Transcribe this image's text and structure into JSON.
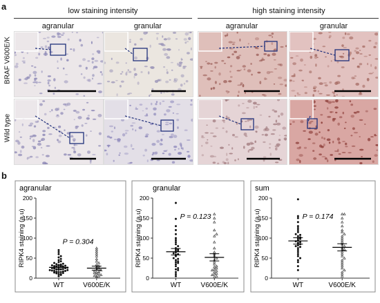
{
  "panel_a": {
    "letter": "a",
    "groups": [
      {
        "title": "low staining intensity"
      },
      {
        "title": "high staining intensity"
      }
    ],
    "columns": [
      "agranular",
      "granular",
      "agranular",
      "granular"
    ],
    "rows": [
      "BRAF V600E/K",
      "Wild type"
    ],
    "tile_tones": [
      [
        "#ece7e9",
        "#ebe6e0",
        "#dfbfba",
        "#e2c2c0"
      ],
      [
        "#ece7ea",
        "#e3dfe7",
        "#e5d4d6",
        "#d9a7a3"
      ]
    ],
    "tile_dots": [
      [
        "#8a86b5",
        "#9b95b8",
        "#9a5b55",
        "#a56a62"
      ],
      [
        "#8e89b6",
        "#8d88bb",
        "#a27c80",
        "#8e3f3a"
      ]
    ]
  },
  "panel_b": {
    "letter": "b",
    "ylabel": "RIPK4 staining (a.u)",
    "colors": {
      "wt": "#111111",
      "mut": "#555555",
      "axis": "#333333"
    }
  },
  "chart_data": [
    {
      "type": "scatter",
      "title": "agranular",
      "categories": [
        "WT",
        "V600E/K"
      ],
      "ylabel": "RIPK4 staining (a.u)",
      "ylim": [
        0,
        200
      ],
      "yticks": [
        0,
        50,
        100,
        150,
        200
      ],
      "annotation": "P = 0.304",
      "series": [
        {
          "name": "WT",
          "mean": 27,
          "sem": 4,
          "values": [
            5,
            8,
            10,
            10,
            12,
            13,
            14,
            15,
            15,
            16,
            17,
            18,
            18,
            19,
            20,
            20,
            21,
            22,
            22,
            23,
            24,
            25,
            25,
            26,
            27,
            28,
            28,
            29,
            30,
            31,
            32,
            33,
            34,
            35,
            36,
            38,
            40,
            42,
            45,
            48,
            52,
            55,
            60,
            65,
            70
          ]
        },
        {
          "name": "V600E/K",
          "mean": 25,
          "sem": 5,
          "values": [
            2,
            4,
            5,
            6,
            8,
            10,
            12,
            13,
            15,
            16,
            18,
            20,
            22,
            25,
            28,
            30,
            34,
            38,
            42,
            48,
            55,
            60,
            65,
            70,
            75
          ]
        }
      ]
    },
    {
      "type": "scatter",
      "title": "granular",
      "categories": [
        "WT",
        "V600E/K"
      ],
      "ylabel": "RIPK4 staining (a.u)",
      "ylim": [
        0,
        200
      ],
      "yticks": [
        0,
        50,
        100,
        150,
        200
      ],
      "annotation": "P = 0.123",
      "series": [
        {
          "name": "WT",
          "mean": 66,
          "sem": 8,
          "values": [
            5,
            10,
            15,
            20,
            22,
            25,
            30,
            35,
            38,
            40,
            42,
            45,
            48,
            50,
            55,
            58,
            60,
            62,
            65,
            68,
            70,
            72,
            75,
            80,
            85,
            90,
            95,
            100,
            110,
            120,
            130,
            148,
            188
          ]
        },
        {
          "name": "V600E/K",
          "mean": 52,
          "sem": 9,
          "values": [
            3,
            5,
            8,
            10,
            12,
            15,
            18,
            20,
            22,
            25,
            28,
            30,
            35,
            40,
            45,
            50,
            55,
            60,
            65,
            75,
            90,
            105,
            110,
            120,
            140,
            150,
            160
          ]
        }
      ]
    },
    {
      "type": "scatter",
      "title": "sum",
      "categories": [
        "WT",
        "V600E/K"
      ],
      "ylabel": "RIPK4 staining (a.u)",
      "ylim": [
        0,
        200
      ],
      "yticks": [
        0,
        50,
        100,
        150,
        200
      ],
      "annotation": "P = 0.174",
      "series": [
        {
          "name": "WT",
          "mean": 93,
          "sem": 8,
          "values": [
            20,
            30,
            40,
            45,
            50,
            55,
            60,
            65,
            70,
            75,
            78,
            80,
            82,
            85,
            88,
            90,
            92,
            95,
            98,
            100,
            102,
            105,
            108,
            110,
            115,
            120,
            125,
            130,
            140,
            150,
            155,
            197
          ]
        },
        {
          "name": "V600E/K",
          "mean": 77,
          "sem": 9,
          "values": [
            5,
            10,
            15,
            20,
            25,
            30,
            35,
            40,
            45,
            50,
            55,
            60,
            65,
            70,
            72,
            75,
            80,
            85,
            90,
            95,
            100,
            105,
            110,
            115,
            120,
            130,
            140,
            150,
            160,
            160
          ]
        }
      ]
    }
  ]
}
